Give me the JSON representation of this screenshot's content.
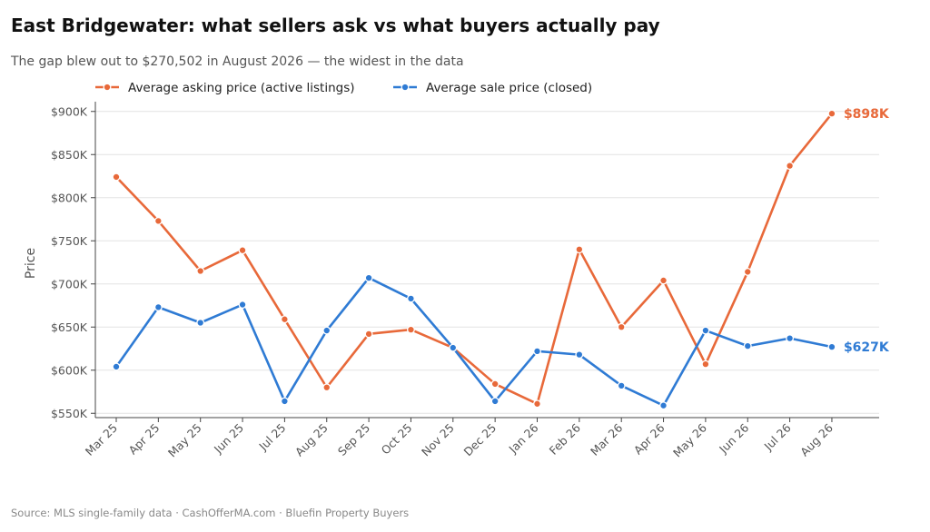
{
  "header": {
    "title": "East Bridgewater: what sellers ask vs what buyers actually pay",
    "subtitle": "The gap blew out to $270,502 in August 2026 — the widest in the data"
  },
  "footer": {
    "source": "Source: MLS single-family data  ·  CashOfferMA.com  ·  Bluefin Property Buyers"
  },
  "chart_data": {
    "type": "line",
    "title": "East Bridgewater: what sellers ask vs what buyers actually pay",
    "subtitle": "The gap blew out to $270,502 in August 2026 — the widest in the data",
    "xlabel": "",
    "ylabel": "Price",
    "categories": [
      "Mar 25",
      "Apr 25",
      "May 25",
      "Jun 25",
      "Jul 25",
      "Aug 25",
      "Sep 25",
      "Oct 25",
      "Nov 25",
      "Dec 25",
      "Jan 26",
      "Feb 26",
      "Mar 26",
      "Apr 26",
      "May 26",
      "Jun 26",
      "Jul 26",
      "Aug 26"
    ],
    "ylim": [
      545000,
      905000
    ],
    "yticks": [
      550000,
      600000,
      650000,
      700000,
      750000,
      800000,
      850000,
      900000
    ],
    "ytick_labels": [
      "$550K",
      "$600K",
      "$650K",
      "$700K",
      "$750K",
      "$800K",
      "$850K",
      "$900K"
    ],
    "grid": "horizontal",
    "legend_position": "top-left",
    "series": [
      {
        "name": "Average asking price (active listings)",
        "color": "#E8693A",
        "values": [
          824000,
          773000,
          715000,
          739000,
          659000,
          580000,
          642000,
          647000,
          626000,
          584000,
          561000,
          740000,
          650000,
          704000,
          607000,
          714000,
          837000,
          897502
        ],
        "end_label": "$898K"
      },
      {
        "name": "Average sale price (closed)",
        "color": "#2F7BD4",
        "values": [
          604000,
          673000,
          655000,
          676000,
          564000,
          646000,
          707000,
          683000,
          626000,
          564000,
          622000,
          618000,
          582000,
          559000,
          646000,
          628000,
          637000,
          627000
        ],
        "end_label": "$627K"
      }
    ]
  }
}
